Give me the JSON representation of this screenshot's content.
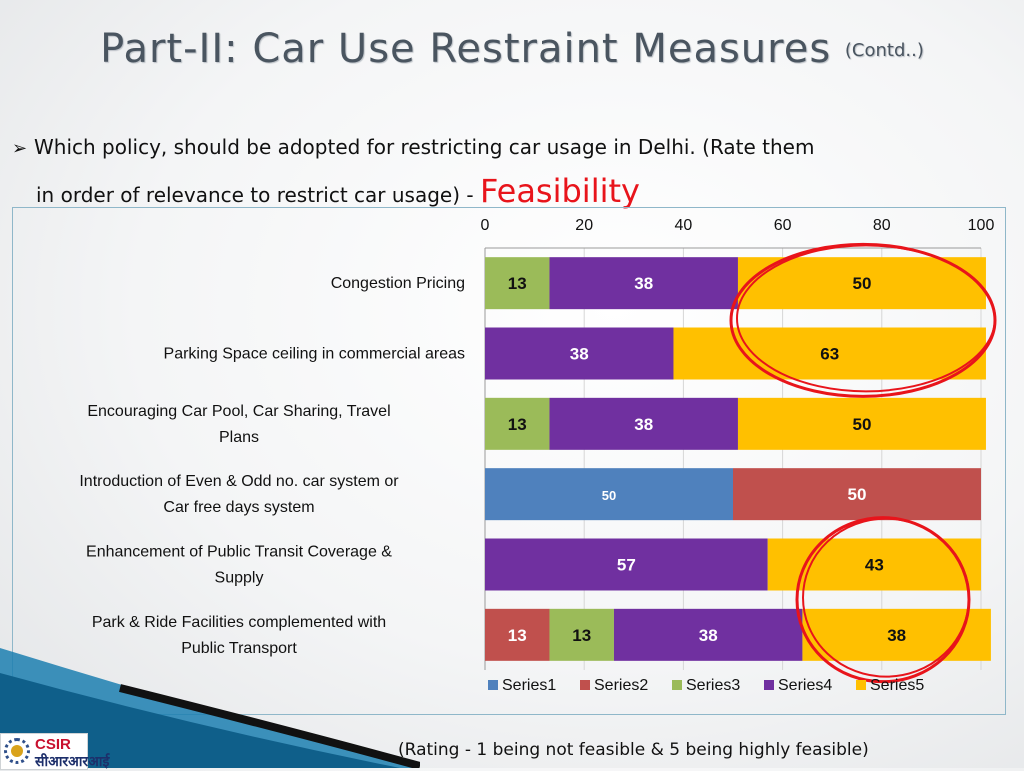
{
  "slide": {
    "title": "Part-II: Car Use Restraint Measures",
    "title_suffix": "(Contd..)",
    "question_line1": "Which policy, should be adopted for restricting car usage in Delhi. (Rate them",
    "question_line2": "in order of relevance to restrict car usage) - ",
    "question_accent": "Feasibility",
    "footer_note": "(Rating - 1 being not feasible & 5 being highly feasible)",
    "logo_text": "CSIR",
    "logo_subtext": "सीआरआरआई",
    "colors": {
      "accent": "#e8141b",
      "frame_border": "#8fb7c9"
    },
    "icons": [
      "arrow-bullet-icon",
      "csir-gear-icon",
      "highlight-circle-icon"
    ]
  },
  "chart_data": {
    "type": "bar",
    "orientation": "horizontal",
    "stacked": true,
    "xlim": [
      0,
      100
    ],
    "x_ticks": [
      0,
      20,
      40,
      60,
      80,
      100
    ],
    "x_axis_position": "top",
    "categories": [
      "Congestion Pricing",
      "Parking Space ceiling in commercial areas",
      "Encouraging Car Pool, Car Sharing, Travel Plans",
      "Introduction of Even & Odd no. car system or Car free days system",
      "Enhancement of Public Transit Coverage & Supply",
      "Park & Ride Facilities complemented with Public Transport"
    ],
    "series": [
      {
        "name": "Series1",
        "color": "#4f81bd",
        "values": [
          0,
          0,
          0,
          50,
          0,
          0
        ]
      },
      {
        "name": "Series2",
        "color": "#c0504d",
        "values": [
          0,
          0,
          0,
          50,
          0,
          13
        ]
      },
      {
        "name": "Series3",
        "color": "#9bbb59",
        "values": [
          13,
          0,
          13,
          0,
          0,
          13
        ]
      },
      {
        "name": "Series4",
        "color": "#7030a0",
        "values": [
          38,
          38,
          38,
          0,
          57,
          38
        ]
      },
      {
        "name": "Series5",
        "color": "#ffc000",
        "values": [
          50,
          63,
          50,
          0,
          43,
          38
        ]
      }
    ],
    "legend": {
      "position": "bottom",
      "entries": [
        "Series1",
        "Series2",
        "Series3",
        "Series4",
        "Series5"
      ]
    },
    "data_labels": true,
    "gridlines": true,
    "highlighted_categories": [
      "Parking Space ceiling in commercial areas",
      "Congestion Pricing",
      "Enhancement of Public Transit Coverage & Supply",
      "Park & Ride Facilities complemented with Public Transport"
    ]
  }
}
